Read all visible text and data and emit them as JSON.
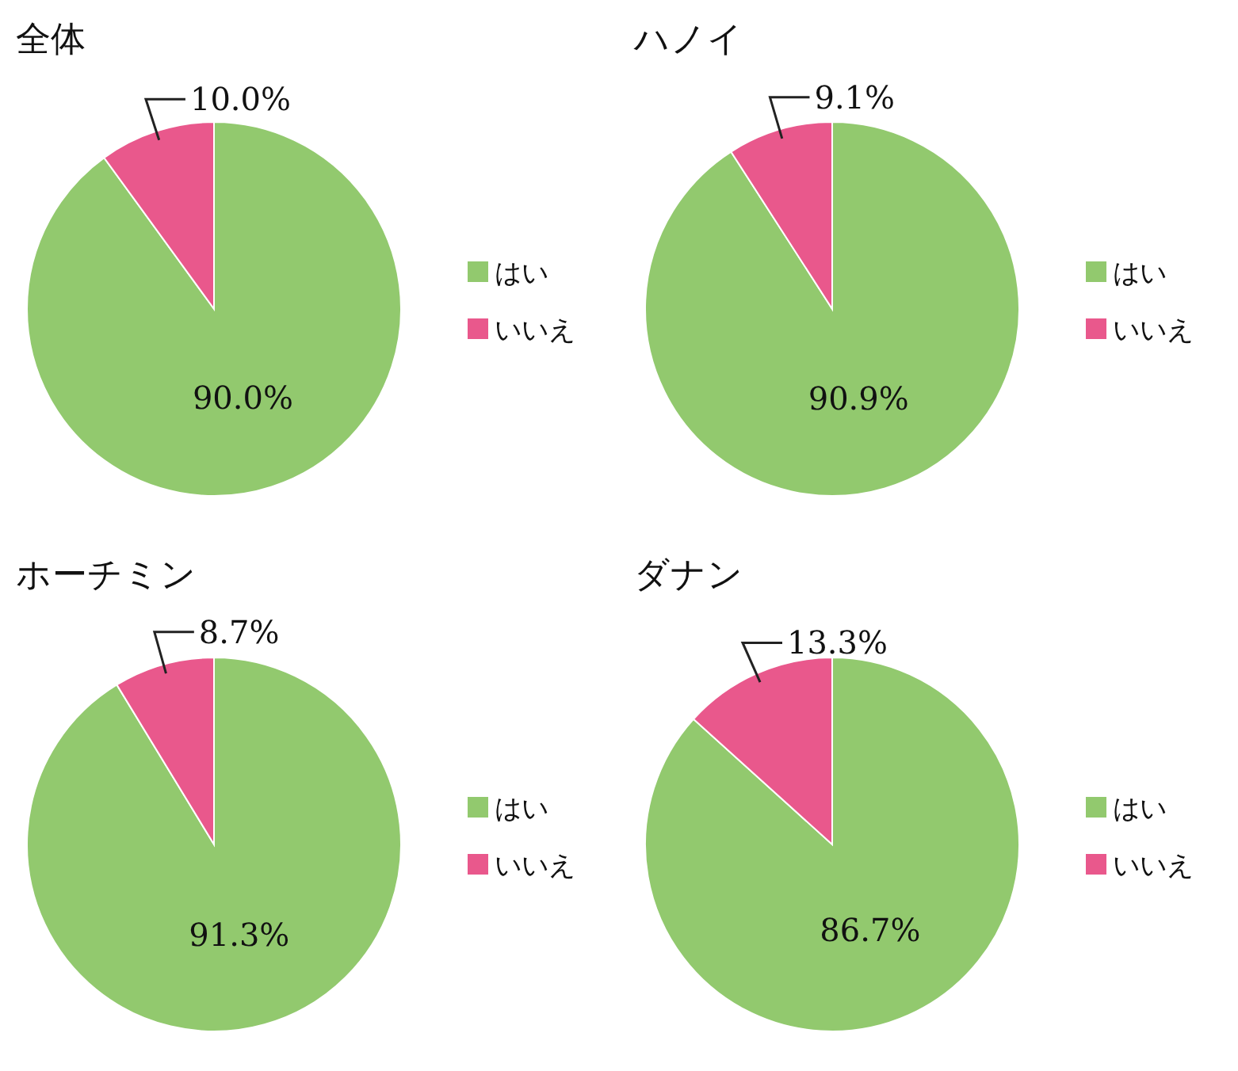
{
  "chart_data": [
    {
      "type": "pie",
      "title": "全体",
      "categories": [
        "はい",
        "いいえ"
      ],
      "values": [
        90.0,
        10.0
      ],
      "colors": [
        "#92c96e",
        "#e9588c"
      ],
      "legend": "right",
      "value_labels": [
        "90.0%",
        "10.0%"
      ]
    },
    {
      "type": "pie",
      "title": "ハノイ",
      "categories": [
        "はい",
        "いいえ"
      ],
      "values": [
        90.9,
        9.1
      ],
      "colors": [
        "#92c96e",
        "#e9588c"
      ],
      "legend": "right",
      "value_labels": [
        "90.9%",
        "9.1%"
      ]
    },
    {
      "type": "pie",
      "title": "ホーチミン",
      "categories": [
        "はい",
        "いいえ"
      ],
      "values": [
        91.3,
        8.7
      ],
      "colors": [
        "#92c96e",
        "#e9588c"
      ],
      "legend": "right",
      "value_labels": [
        "91.3%",
        "8.7%"
      ]
    },
    {
      "type": "pie",
      "title": "ダナン",
      "categories": [
        "はい",
        "いいえ"
      ],
      "values": [
        86.7,
        13.3
      ],
      "colors": [
        "#92c96e",
        "#e9588c"
      ],
      "legend": "right",
      "value_labels": [
        "86.7%",
        "13.3%"
      ]
    }
  ]
}
